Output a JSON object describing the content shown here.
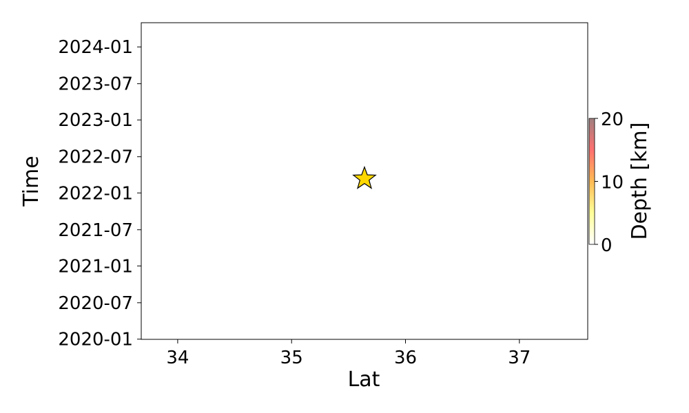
{
  "chart_data": {
    "type": "scatter",
    "xlabel": "Lat",
    "ylabel": "Time",
    "xlim": [
      33.68,
      37.6
    ],
    "ylim": [
      "2019-12-31",
      "2024-05-01"
    ],
    "x_ticks": [
      34,
      35,
      36,
      37
    ],
    "x_tick_labels": [
      "34",
      "35",
      "36",
      "37"
    ],
    "y_ticks": [
      "2020-01-01",
      "2020-07-01",
      "2021-01-01",
      "2021-07-01",
      "2022-01-01",
      "2022-07-01",
      "2023-01-01",
      "2023-07-01",
      "2024-01-01"
    ],
    "y_tick_labels": [
      "2020-01",
      "2020-07",
      "2021-01",
      "2021-07",
      "2022-01",
      "2022-07",
      "2023-01",
      "2023-07",
      "2024-01"
    ],
    "grid": false,
    "points": [
      {
        "x": 35.64,
        "y": "2022-03-13",
        "marker": "star",
        "color": "#ffd700",
        "edge_color": "#000000"
      }
    ],
    "colorbar": {
      "label": "Depth [km]",
      "range": [
        0,
        20
      ],
      "ticks": [
        0,
        10,
        20
      ],
      "tick_labels": [
        "0",
        "10",
        "20"
      ],
      "colors": [
        "#ffffff",
        "#ffff99",
        "#ffbb55",
        "#ff7070",
        "#a08080"
      ]
    }
  }
}
